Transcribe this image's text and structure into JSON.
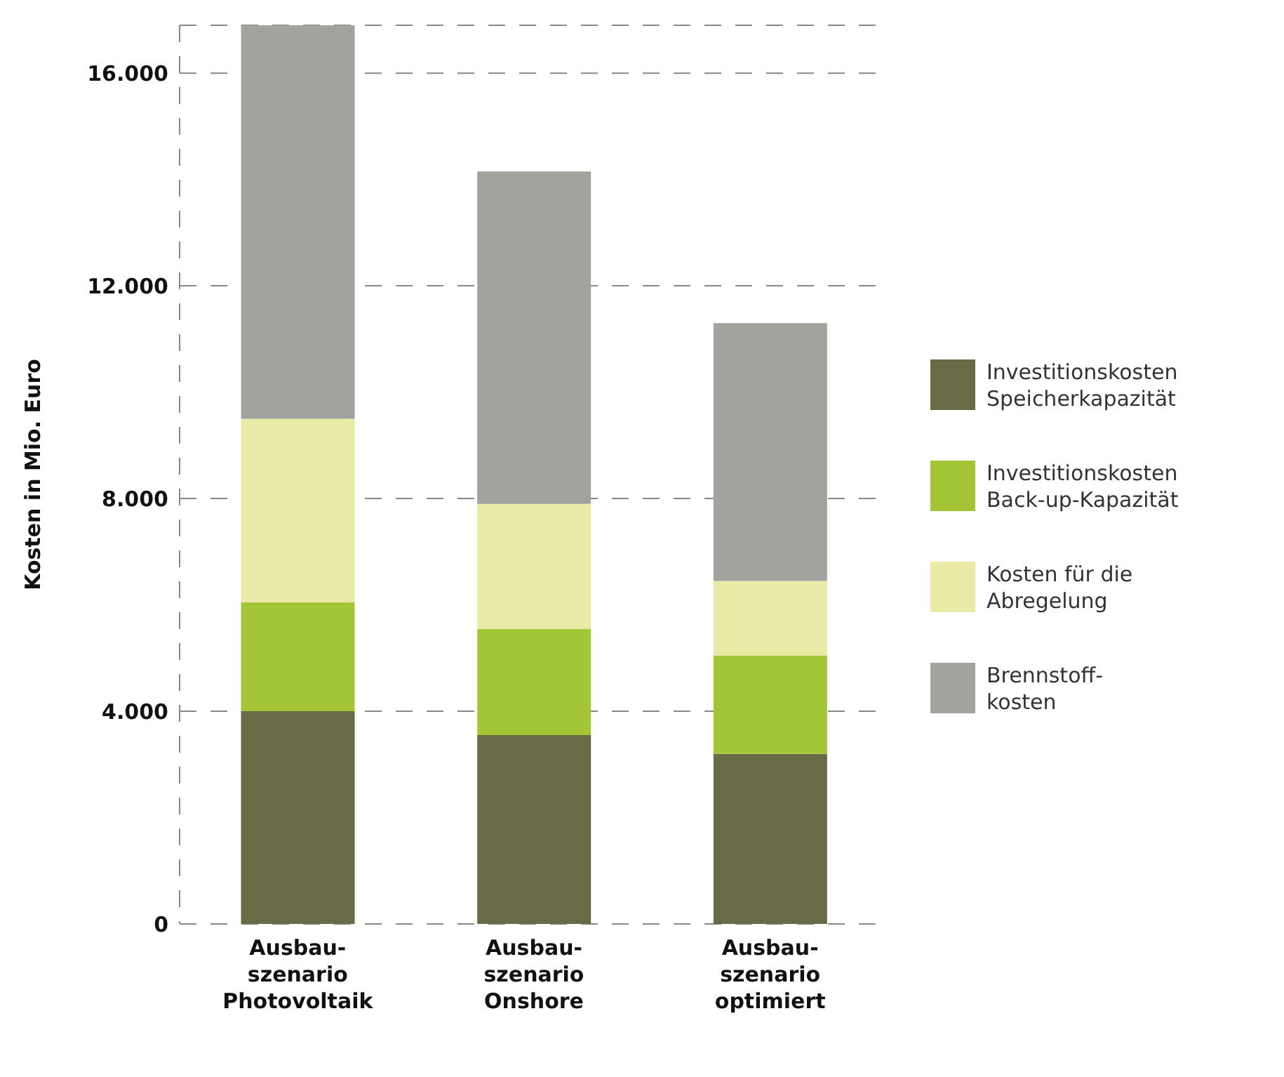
{
  "chart_data": {
    "type": "bar",
    "stacked": true,
    "ylabel": "Kosten in Mio. Euro",
    "categories": [
      "Ausbau-\nszenario\nPhotovoltaik",
      "Ausbau-\nszenario\nOnshore",
      "Ausbau-\nszenario\noptimiert"
    ],
    "series": [
      {
        "name": "Investitionskosten\nSpeicherkapazität",
        "color": "#686b45",
        "values": [
          4000,
          3550,
          3200
        ]
      },
      {
        "name": "Investitionskosten\nBack-up-Kapazität",
        "color": "#a3c636",
        "values": [
          2050,
          2000,
          1850
        ]
      },
      {
        "name": "Kosten für die\nAbregelung",
        "color": "#e8eaa6",
        "values": [
          3450,
          2350,
          1400
        ]
      },
      {
        "name": "Brennstoff-\nkosten",
        "color": "#a3a39e",
        "values": [
          7450,
          6250,
          4850
        ]
      }
    ],
    "ylim": [
      0,
      16900
    ],
    "yticks": [
      {
        "value": 0,
        "label": "0"
      },
      {
        "value": 4000,
        "label": "4.000"
      },
      {
        "value": 8000,
        "label": "8.000"
      },
      {
        "value": 12000,
        "label": "12.000"
      },
      {
        "value": 16000,
        "label": "16.000"
      }
    ],
    "grid": "y",
    "legend": "right"
  }
}
